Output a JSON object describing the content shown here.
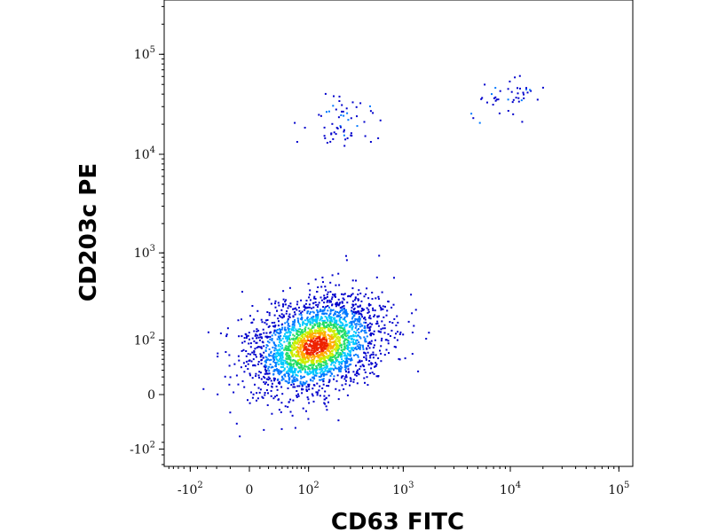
{
  "chart_data": {
    "type": "scatter",
    "subtype": "flow-cytometry density dot plot",
    "title": "",
    "xlabel": "CD63 FITC",
    "ylabel": "CD203c PE",
    "x_scale": "biexponential",
    "y_scale": "biexponential",
    "xlim": [
      -200,
      150000
    ],
    "ylim": [
      -600,
      200000
    ],
    "x_ticks": [
      {
        "value": -100,
        "base": "-10",
        "exp": "2"
      },
      {
        "value": 0,
        "base": "0",
        "exp": ""
      },
      {
        "value": 100,
        "base": "10",
        "exp": "2"
      },
      {
        "value": 1000,
        "base": "10",
        "exp": "3"
      },
      {
        "value": 10000,
        "base": "10",
        "exp": "4"
      },
      {
        "value": 100000,
        "base": "10",
        "exp": "5"
      }
    ],
    "y_ticks": [
      {
        "value": -100,
        "base": "-10",
        "exp": "2"
      },
      {
        "value": 0,
        "base": "0",
        "exp": ""
      },
      {
        "value": 100,
        "base": "10",
        "exp": "2"
      },
      {
        "value": 1000,
        "base": "10",
        "exp": "3"
      },
      {
        "value": 10000,
        "base": "10",
        "exp": "4"
      },
      {
        "value": 100000,
        "base": "10",
        "exp": "5"
      }
    ],
    "grid": false,
    "legend": "none",
    "colormap": [
      "#0000cc",
      "#0077ff",
      "#00c8ff",
      "#22dd66",
      "#ccee00",
      "#ffaa00",
      "#ee2200"
    ],
    "populations": [
      {
        "label": "",
        "description": "main dense cluster (CD63 low, CD203c low)",
        "x_center": 120,
        "y_center": 85,
        "x_spread_decades": 0.55,
        "y_spread_decades": 0.5,
        "approx_events": 2600
      },
      {
        "label": "",
        "description": "sparse upper-middle events (CD203c high, CD63 low-mid)",
        "x_center": 250,
        "y_center": 22000,
        "x_spread_decades": 0.35,
        "y_spread_decades": 0.3,
        "approx_events": 60
      },
      {
        "label": "",
        "description": "sparse upper-right events (CD203c high, CD63 high)",
        "x_center": 9000,
        "y_center": 38000,
        "x_spread_decades": 0.3,
        "y_spread_decades": 0.2,
        "approx_events": 45
      }
    ]
  }
}
